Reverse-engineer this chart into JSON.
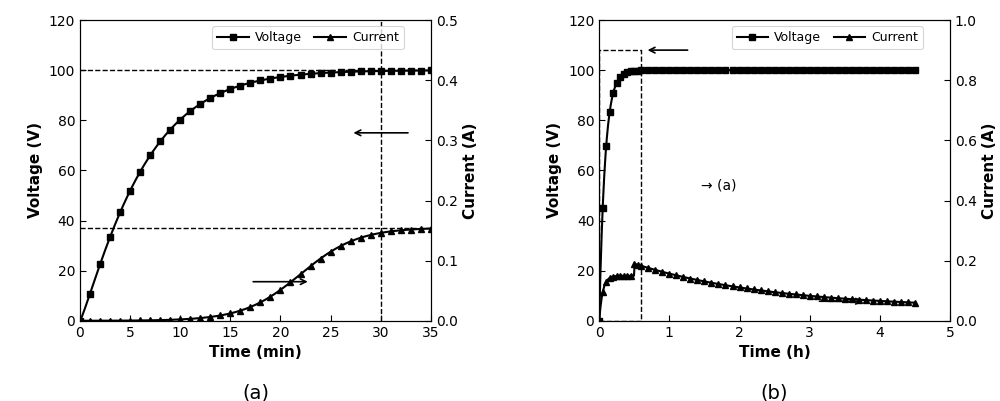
{
  "fig_width": 10.0,
  "fig_height": 4.01,
  "dpi": 100,
  "background_color": "#ffffff",
  "plot_a": {
    "title": "(a)",
    "xlabel": "Time (min)",
    "ylabel_left": "Voltage (V)",
    "ylabel_right": "Current (A)",
    "xlim": [
      0,
      35
    ],
    "ylim_left": [
      0,
      120
    ],
    "ylim_right": [
      0,
      0.5
    ],
    "yticks_left": [
      0,
      20,
      40,
      60,
      80,
      100,
      120
    ],
    "yticks_right": [
      0.0,
      0.1,
      0.2,
      0.3,
      0.4,
      0.5
    ],
    "xticks": [
      0,
      5,
      10,
      15,
      20,
      25,
      30,
      35
    ]
  },
  "plot_b": {
    "title": "(b)",
    "xlabel": "Time (h)",
    "ylabel_left": "Voltage (V)",
    "ylabel_right": "Current (A)",
    "xlim": [
      0,
      5
    ],
    "ylim_left": [
      0,
      120
    ],
    "ylim_right": [
      0,
      1.0
    ],
    "yticks_left": [
      0,
      20,
      40,
      60,
      80,
      100,
      120
    ],
    "yticks_right": [
      0.0,
      0.2,
      0.4,
      0.6,
      0.8,
      1.0
    ],
    "xticks": [
      0,
      1,
      2,
      3,
      4,
      5
    ]
  },
  "line_color": "#000000",
  "marker_voltage": "s",
  "marker_current": "^",
  "markersize": 4,
  "linewidth": 1.5
}
